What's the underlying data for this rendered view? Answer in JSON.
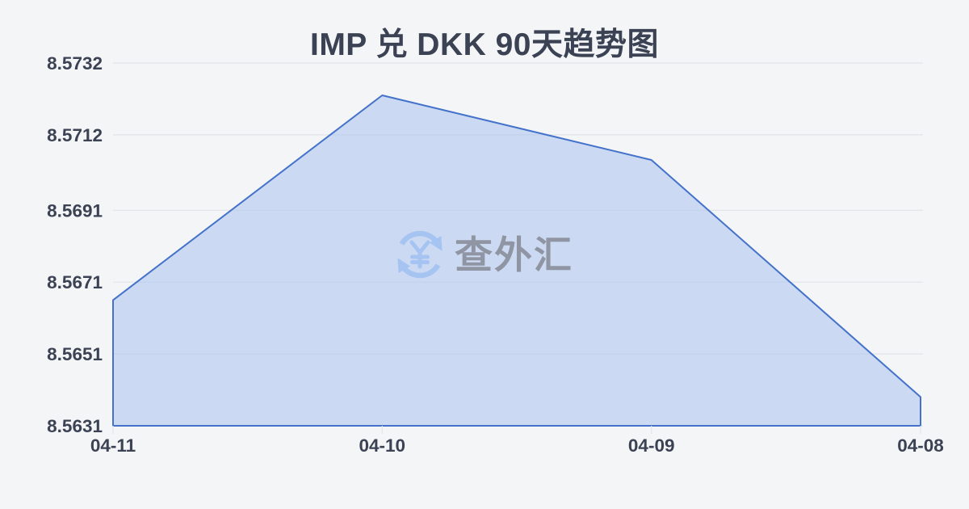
{
  "title": "IMP 兑 DKK 90天趋势图",
  "watermark": {
    "text": "查外汇",
    "icon": "currency-exchange-refresh-icon"
  },
  "chart_data": {
    "type": "area",
    "title": "IMP 兑 DKK 90天趋势图",
    "x": [
      "04-11",
      "04-10",
      "04-09",
      "04-08"
    ],
    "series": [
      {
        "name": "IMP/DKK",
        "values": [
          8.5666,
          8.5723,
          8.5705,
          8.5639
        ]
      }
    ],
    "y_ticks": [
      8.5732,
      8.5712,
      8.5691,
      8.5671,
      8.5651,
      8.5631
    ],
    "ylim": [
      8.5631,
      8.5732
    ],
    "grid": true,
    "legend": "none",
    "colors": {
      "line": "#4472cb",
      "fill": "#aac2ee",
      "grid": "#e2e4e8",
      "axis_text": "#3b4254",
      "background": "#f4f5f7",
      "watermark_icon": "#a6c4f2",
      "watermark_text": "#8f95a3"
    }
  }
}
